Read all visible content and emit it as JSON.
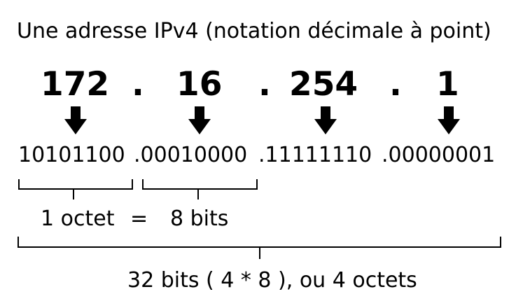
{
  "title": "Une adresse IPv4 (notation décimale à point)",
  "octets": [
    {
      "decimal": "172",
      "binary": "10101100"
    },
    {
      "decimal": "16",
      "binary": ".00010000"
    },
    {
      "decimal": "254",
      "binary": ".11111110"
    },
    {
      "decimal": "1",
      "binary": ".00000001"
    }
  ],
  "separator": ".",
  "octet_label": "1 octet",
  "equals": "=",
  "bits_label": "8 bits",
  "total_label": "32 bits ( 4 * 8 ), ou 4 octets"
}
